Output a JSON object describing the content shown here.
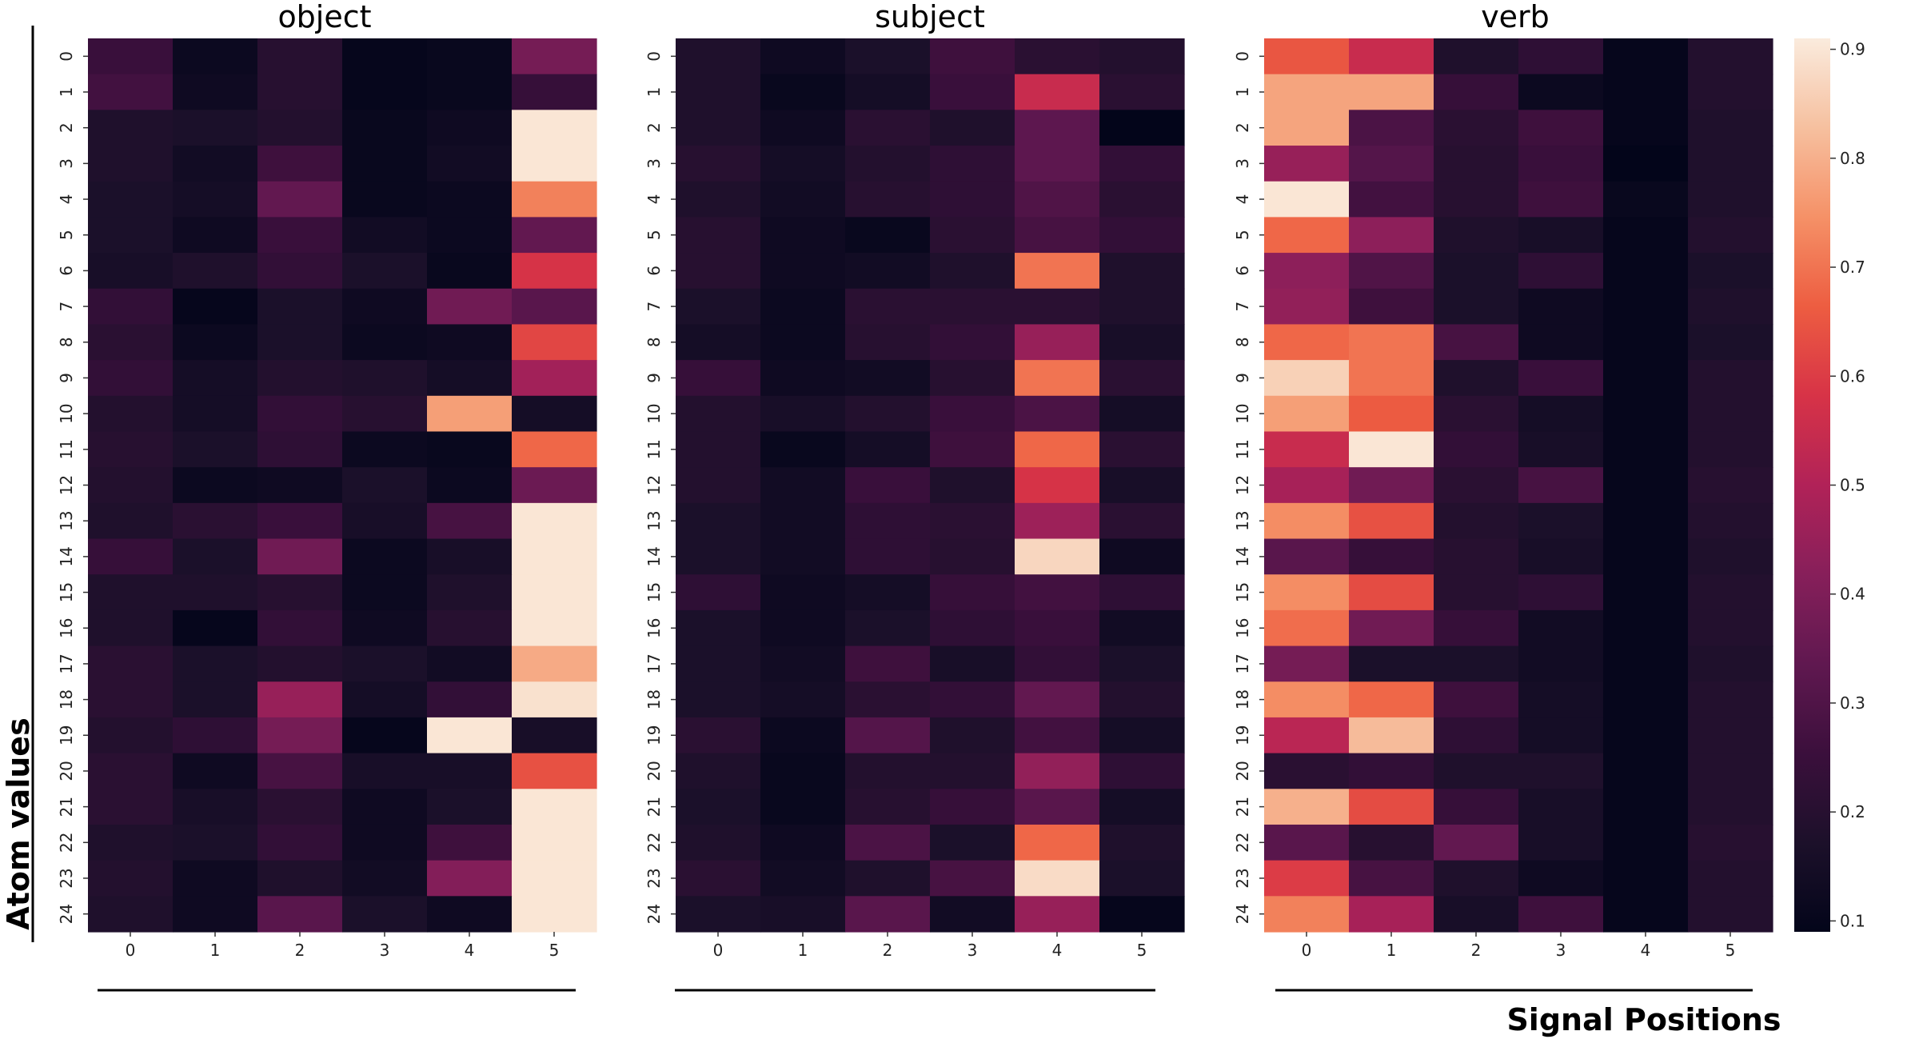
{
  "chart_data": {
    "type": "heatmap",
    "ylabel": "Atom values",
    "xlabel": "Signal Positions",
    "x_ticks": [
      "0",
      "1",
      "2",
      "3",
      "4",
      "5"
    ],
    "y_ticks": [
      "0",
      "1",
      "2",
      "3",
      "4",
      "5",
      "6",
      "7",
      "8",
      "9",
      "10",
      "11",
      "12",
      "13",
      "14",
      "15",
      "16",
      "17",
      "18",
      "19",
      "20",
      "21",
      "22",
      "23",
      "24"
    ],
    "colorbar": {
      "min": 0.09,
      "max": 0.91,
      "ticks": [
        "0.1",
        "0.2",
        "0.3",
        "0.4",
        "0.5",
        "0.6",
        "0.7",
        "0.8",
        "0.9"
      ],
      "tick_values": [
        0.1,
        0.2,
        0.3,
        0.4,
        0.5,
        0.6,
        0.7,
        0.8,
        0.9
      ],
      "colormap": "rocket"
    },
    "panels": [
      {
        "title": "object",
        "values": [
          [
            0.25,
            0.12,
            0.2,
            0.1,
            0.11,
            0.38
          ],
          [
            0.27,
            0.13,
            0.2,
            0.1,
            0.11,
            0.24
          ],
          [
            0.18,
            0.17,
            0.19,
            0.11,
            0.13,
            0.9
          ],
          [
            0.18,
            0.14,
            0.26,
            0.11,
            0.14,
            0.9
          ],
          [
            0.17,
            0.15,
            0.34,
            0.11,
            0.12,
            0.72
          ],
          [
            0.17,
            0.13,
            0.25,
            0.14,
            0.12,
            0.34
          ],
          [
            0.16,
            0.18,
            0.23,
            0.17,
            0.11,
            0.58
          ],
          [
            0.23,
            0.1,
            0.17,
            0.13,
            0.37,
            0.32
          ],
          [
            0.21,
            0.12,
            0.17,
            0.12,
            0.13,
            0.62
          ],
          [
            0.23,
            0.15,
            0.19,
            0.18,
            0.15,
            0.47
          ],
          [
            0.19,
            0.15,
            0.23,
            0.2,
            0.77,
            0.15
          ],
          [
            0.2,
            0.17,
            0.22,
            0.12,
            0.11,
            0.68
          ],
          [
            0.19,
            0.12,
            0.13,
            0.17,
            0.12,
            0.36
          ],
          [
            0.18,
            0.21,
            0.25,
            0.16,
            0.28,
            0.9
          ],
          [
            0.24,
            0.17,
            0.37,
            0.12,
            0.16,
            0.9
          ],
          [
            0.18,
            0.18,
            0.2,
            0.12,
            0.18,
            0.9
          ],
          [
            0.18,
            0.1,
            0.23,
            0.13,
            0.2,
            0.9
          ],
          [
            0.21,
            0.17,
            0.19,
            0.17,
            0.14,
            0.79
          ],
          [
            0.21,
            0.17,
            0.45,
            0.15,
            0.23,
            0.89
          ],
          [
            0.19,
            0.22,
            0.38,
            0.1,
            0.9,
            0.16
          ],
          [
            0.21,
            0.13,
            0.28,
            0.16,
            0.16,
            0.64
          ],
          [
            0.21,
            0.16,
            0.21,
            0.13,
            0.17,
            0.9
          ],
          [
            0.18,
            0.17,
            0.23,
            0.13,
            0.26,
            0.9
          ],
          [
            0.19,
            0.13,
            0.18,
            0.14,
            0.41,
            0.9
          ],
          [
            0.18,
            0.13,
            0.32,
            0.17,
            0.13,
            0.9
          ]
        ]
      },
      {
        "title": "subject",
        "values": [
          [
            0.18,
            0.13,
            0.17,
            0.26,
            0.21,
            0.19
          ],
          [
            0.18,
            0.11,
            0.15,
            0.25,
            0.55,
            0.21
          ],
          [
            0.18,
            0.13,
            0.21,
            0.18,
            0.33,
            0.09
          ],
          [
            0.2,
            0.15,
            0.19,
            0.22,
            0.33,
            0.23
          ],
          [
            0.18,
            0.14,
            0.2,
            0.22,
            0.3,
            0.21
          ],
          [
            0.2,
            0.13,
            0.11,
            0.21,
            0.28,
            0.23
          ],
          [
            0.2,
            0.13,
            0.14,
            0.18,
            0.7,
            0.18
          ],
          [
            0.17,
            0.12,
            0.21,
            0.21,
            0.21,
            0.18
          ],
          [
            0.15,
            0.12,
            0.2,
            0.23,
            0.45,
            0.16
          ],
          [
            0.24,
            0.13,
            0.14,
            0.2,
            0.7,
            0.21
          ],
          [
            0.19,
            0.16,
            0.19,
            0.25,
            0.29,
            0.15
          ],
          [
            0.19,
            0.11,
            0.15,
            0.26,
            0.68,
            0.21
          ],
          [
            0.19,
            0.14,
            0.25,
            0.18,
            0.58,
            0.16
          ],
          [
            0.17,
            0.14,
            0.22,
            0.21,
            0.46,
            0.21
          ],
          [
            0.17,
            0.14,
            0.22,
            0.2,
            0.87,
            0.13
          ],
          [
            0.22,
            0.13,
            0.15,
            0.24,
            0.27,
            0.22
          ],
          [
            0.17,
            0.13,
            0.17,
            0.22,
            0.25,
            0.14
          ],
          [
            0.17,
            0.14,
            0.26,
            0.16,
            0.23,
            0.17
          ],
          [
            0.17,
            0.15,
            0.21,
            0.23,
            0.34,
            0.19
          ],
          [
            0.21,
            0.12,
            0.31,
            0.18,
            0.27,
            0.15
          ],
          [
            0.18,
            0.11,
            0.19,
            0.19,
            0.44,
            0.22
          ],
          [
            0.17,
            0.11,
            0.2,
            0.24,
            0.32,
            0.15
          ],
          [
            0.18,
            0.13,
            0.29,
            0.17,
            0.68,
            0.18
          ],
          [
            0.21,
            0.14,
            0.18,
            0.28,
            0.88,
            0.17
          ],
          [
            0.17,
            0.16,
            0.32,
            0.14,
            0.45,
            0.1
          ]
        ]
      },
      {
        "title": "verb",
        "values": [
          [
            0.65,
            0.55,
            0.18,
            0.22,
            0.1,
            0.19
          ],
          [
            0.78,
            0.78,
            0.24,
            0.12,
            0.1,
            0.19
          ],
          [
            0.78,
            0.29,
            0.21,
            0.26,
            0.1,
            0.18
          ],
          [
            0.45,
            0.31,
            0.2,
            0.25,
            0.09,
            0.18
          ],
          [
            0.9,
            0.27,
            0.2,
            0.26,
            0.11,
            0.18
          ],
          [
            0.68,
            0.43,
            0.18,
            0.16,
            0.1,
            0.19
          ],
          [
            0.43,
            0.3,
            0.17,
            0.22,
            0.1,
            0.17
          ],
          [
            0.44,
            0.26,
            0.17,
            0.13,
            0.1,
            0.18
          ],
          [
            0.68,
            0.7,
            0.28,
            0.13,
            0.1,
            0.17
          ],
          [
            0.86,
            0.7,
            0.18,
            0.25,
            0.1,
            0.19
          ],
          [
            0.77,
            0.66,
            0.21,
            0.15,
            0.1,
            0.19
          ],
          [
            0.55,
            0.9,
            0.23,
            0.16,
            0.1,
            0.19
          ],
          [
            0.48,
            0.37,
            0.21,
            0.28,
            0.1,
            0.2
          ],
          [
            0.74,
            0.64,
            0.19,
            0.17,
            0.1,
            0.19
          ],
          [
            0.32,
            0.24,
            0.2,
            0.16,
            0.1,
            0.18
          ],
          [
            0.74,
            0.63,
            0.2,
            0.22,
            0.1,
            0.19
          ],
          [
            0.69,
            0.37,
            0.24,
            0.14,
            0.1,
            0.19
          ],
          [
            0.38,
            0.17,
            0.17,
            0.14,
            0.1,
            0.18
          ],
          [
            0.74,
            0.68,
            0.26,
            0.15,
            0.1,
            0.19
          ],
          [
            0.52,
            0.82,
            0.22,
            0.15,
            0.1,
            0.19
          ],
          [
            0.21,
            0.23,
            0.18,
            0.18,
            0.1,
            0.19
          ],
          [
            0.8,
            0.63,
            0.24,
            0.16,
            0.1,
            0.19
          ],
          [
            0.32,
            0.2,
            0.34,
            0.16,
            0.1,
            0.2
          ],
          [
            0.6,
            0.28,
            0.18,
            0.13,
            0.1,
            0.19
          ],
          [
            0.72,
            0.48,
            0.16,
            0.26,
            0.1,
            0.19
          ]
        ]
      }
    ]
  }
}
